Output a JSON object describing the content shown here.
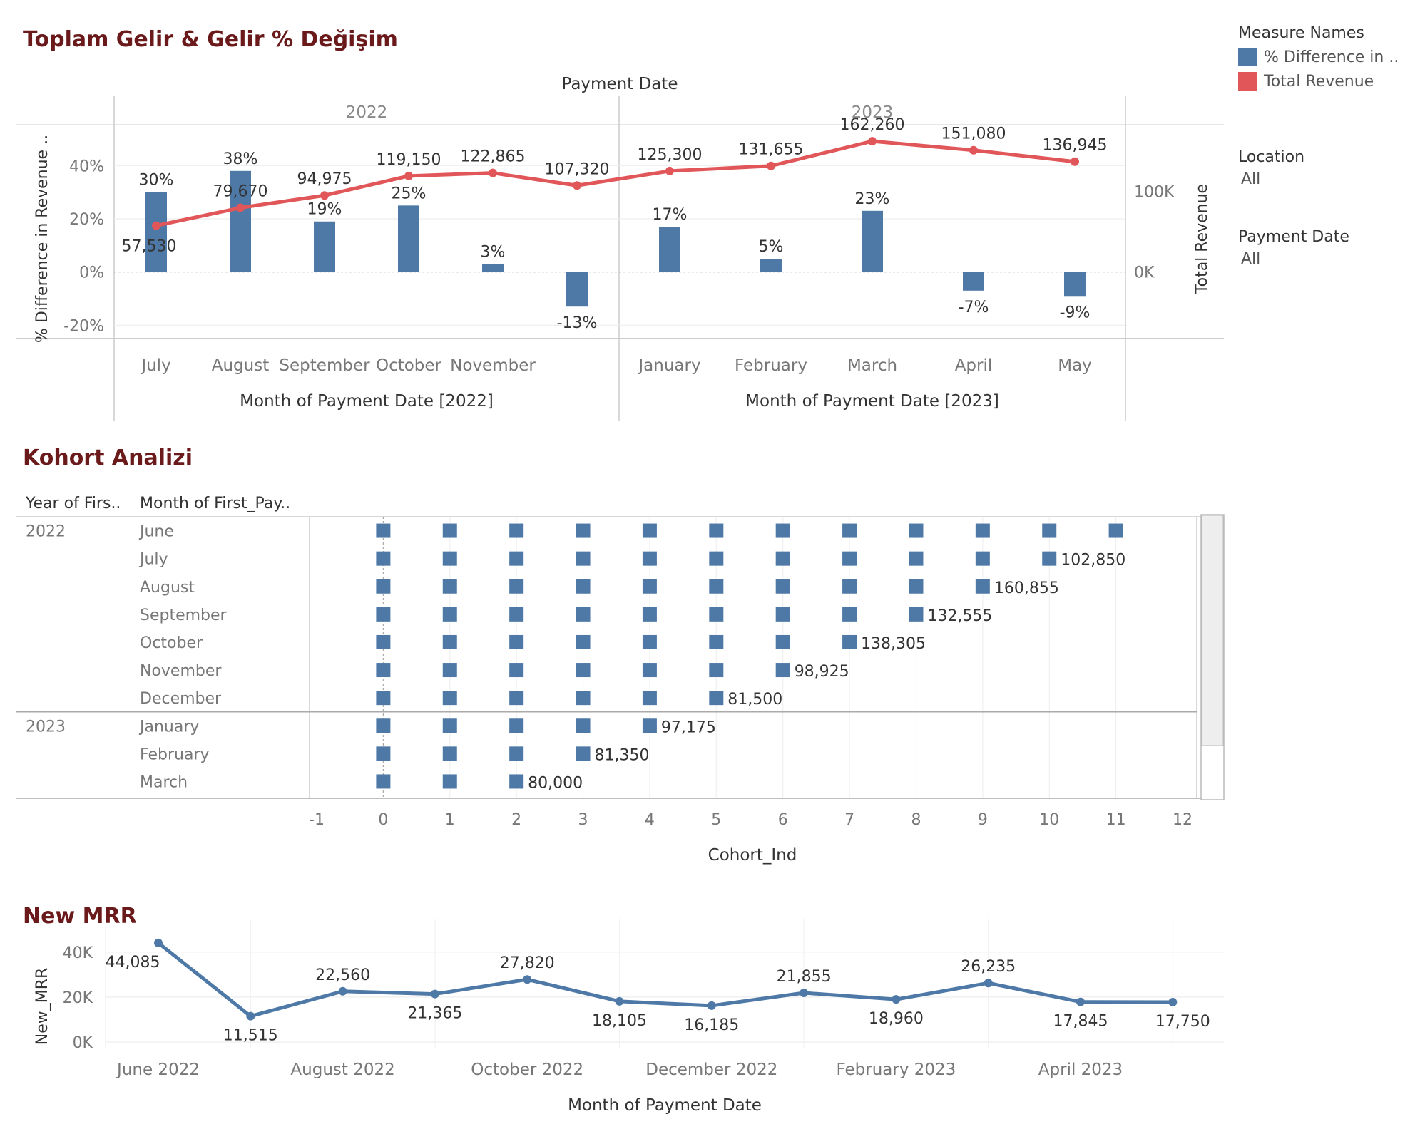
{
  "titles": {
    "revenue": "Toplam Gelir & Gelir % Değişim",
    "cohort": "Kohort Analizi",
    "mrr": "New MRR"
  },
  "sidebar": {
    "legend_title": "Measure Names",
    "legend_items": [
      {
        "label": "% Difference in ..",
        "color": "#4e79a7"
      },
      {
        "label": "Total Revenue",
        "color": "#e15759"
      }
    ],
    "filters": [
      {
        "title": "Location",
        "value": "All"
      },
      {
        "title": "Payment Date",
        "value": "All"
      }
    ]
  },
  "colors": {
    "blue": "#4e79a7",
    "red": "#e15759",
    "title": "#6b1a1c"
  },
  "chart_data": [
    {
      "type": "bar",
      "name": "revenue_pct_diff",
      "header": "Payment Date",
      "panes": [
        {
          "year": "2022",
          "xlabel": "Month of Payment Date [2022]"
        },
        {
          "year": "2023",
          "xlabel": "Month of Payment Date [2023]"
        }
      ],
      "categories": [
        "July",
        "August",
        "September",
        "October",
        "November",
        "December",
        "January",
        "February",
        "March",
        "April",
        "May"
      ],
      "tick_labels": [
        "July",
        "August",
        "September",
        "October",
        "November",
        "",
        "January",
        "February",
        "March",
        "April",
        "May"
      ],
      "pane_of_category": [
        0,
        0,
        0,
        0,
        0,
        0,
        1,
        1,
        1,
        1,
        1
      ],
      "series": [
        {
          "name": "% Difference in ..",
          "axis": "left",
          "kind": "bar",
          "values": [
            30,
            38,
            19,
            25,
            3,
            -13,
            17,
            5,
            23,
            -7,
            -9
          ],
          "labels": [
            "30%",
            "38%",
            "19%",
            "25%",
            "3%",
            "-13%",
            "17%",
            "5%",
            "23%",
            "-7%",
            "-9%"
          ]
        },
        {
          "name": "Total Revenue",
          "axis": "right",
          "kind": "line",
          "values": [
            57530,
            79670,
            94975,
            119150,
            122865,
            107320,
            125300,
            131655,
            162260,
            151080,
            136945
          ],
          "labels": [
            "57,530",
            "79,670",
            "94,975",
            "119,150",
            "122,865",
            "107,320",
            "125,300",
            "131,655",
            "162,260",
            "151,080",
            "136,945"
          ]
        }
      ],
      "ylabel_left": "% Difference in Revenue ..",
      "ylabel_right": "Total Revenue",
      "ylim_left": [
        -25,
        50
      ],
      "yticks_left": [
        {
          "v": -20,
          "t": "-20%"
        },
        {
          "v": 0,
          "t": "0%"
        },
        {
          "v": 20,
          "t": "20%"
        },
        {
          "v": 40,
          "t": "40%"
        }
      ],
      "ylim_right": [
        -82500,
        165000
      ],
      "yticks_right": [
        {
          "v": 0,
          "t": "0K"
        },
        {
          "v": 100000,
          "t": "100K"
        }
      ]
    },
    {
      "type": "scatter",
      "name": "cohort",
      "col_headers": [
        "Year of Firs..",
        "Month of First_Pay.."
      ],
      "xlabel": "Cohort_Ind",
      "xlim": [
        -1,
        12
      ],
      "xticks": [
        -1,
        0,
        1,
        2,
        3,
        4,
        5,
        6,
        7,
        8,
        9,
        10,
        11,
        12
      ],
      "rows": [
        {
          "year": "2022",
          "month": "June",
          "max_index": 11,
          "label": ""
        },
        {
          "year": "",
          "month": "July",
          "max_index": 10,
          "label": "102,850"
        },
        {
          "year": "",
          "month": "August",
          "max_index": 9,
          "label": "160,855"
        },
        {
          "year": "",
          "month": "September",
          "max_index": 8,
          "label": "132,555"
        },
        {
          "year": "",
          "month": "October",
          "max_index": 7,
          "label": "138,305"
        },
        {
          "year": "",
          "month": "November",
          "max_index": 6,
          "label": "98,925"
        },
        {
          "year": "",
          "month": "December",
          "max_index": 5,
          "label": "81,500"
        },
        {
          "year": "2023",
          "month": "January",
          "max_index": 4,
          "label": "97,175"
        },
        {
          "year": "",
          "month": "February",
          "max_index": 3,
          "label": "81,350"
        },
        {
          "year": "",
          "month": "March",
          "max_index": 2,
          "label": "80,000"
        }
      ]
    },
    {
      "type": "line",
      "name": "new_mrr",
      "ylabel": "New_MRR",
      "xlabel": "Month of Payment Date",
      "x": [
        "2022-06",
        "2022-07",
        "2022-08",
        "2022-09",
        "2022-10",
        "2022-11",
        "2022-12",
        "2023-01",
        "2023-02",
        "2023-03",
        "2023-04",
        "2023-05"
      ],
      "values": [
        44085,
        11515,
        22560,
        21365,
        27820,
        18105,
        16185,
        21855,
        18960,
        26235,
        17845,
        17750
      ],
      "labels": [
        "44,085",
        "11,515",
        "22,560",
        "21,365",
        "27,820",
        "18,105",
        "16,185",
        "21,855",
        "18,960",
        "26,235",
        "17,845",
        "17,750"
      ],
      "tick_labels": [
        "June 2022",
        "",
        "August 2022",
        "",
        "October 2022",
        "",
        "December 2022",
        "",
        "February 2023",
        "",
        "April 2023",
        ""
      ],
      "ylim": [
        0,
        45000
      ],
      "yticks": [
        {
          "v": 0,
          "t": "0K"
        },
        {
          "v": 20000,
          "t": "20K"
        },
        {
          "v": 40000,
          "t": "40K"
        }
      ]
    }
  ]
}
